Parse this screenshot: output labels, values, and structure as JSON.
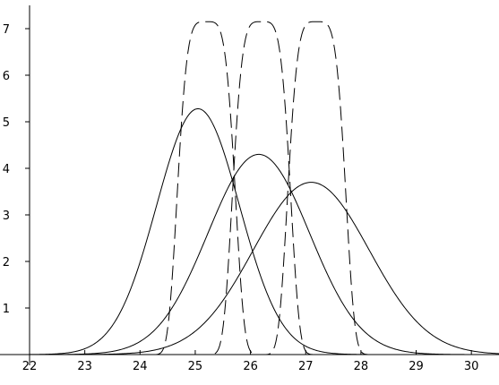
{
  "chart_data": {
    "type": "line",
    "title": "",
    "xlabel": "",
    "ylabel": "",
    "xlim": [
      22,
      30.5
    ],
    "ylim": [
      0,
      7.5
    ],
    "grid": false,
    "x_ticks": [
      "22",
      "23",
      "24",
      "25",
      "26",
      "27",
      "28",
      "29",
      "30"
    ],
    "y_ticks": [
      "1",
      "2",
      "3",
      "4",
      "5",
      "6",
      "7"
    ],
    "series": [
      {
        "style": "solid",
        "shape": "gaussian",
        "mean": 25.05,
        "sd": 0.75,
        "peak": 5.28
      },
      {
        "style": "solid",
        "shape": "gaussian",
        "mean": 26.15,
        "sd": 0.92,
        "peak": 4.3
      },
      {
        "style": "solid",
        "shape": "gaussian",
        "mean": 27.1,
        "sd": 1.05,
        "peak": 3.7
      },
      {
        "style": "dashed",
        "shape": "flat-top",
        "mean": 25.2,
        "sd": 0.4,
        "peak": 7.15
      },
      {
        "style": "dashed",
        "shape": "flat-top",
        "mean": 26.2,
        "sd": 0.4,
        "peak": 7.15
      },
      {
        "style": "dashed",
        "shape": "flat-top",
        "mean": 27.2,
        "sd": 0.4,
        "peak": 7.15
      }
    ]
  }
}
